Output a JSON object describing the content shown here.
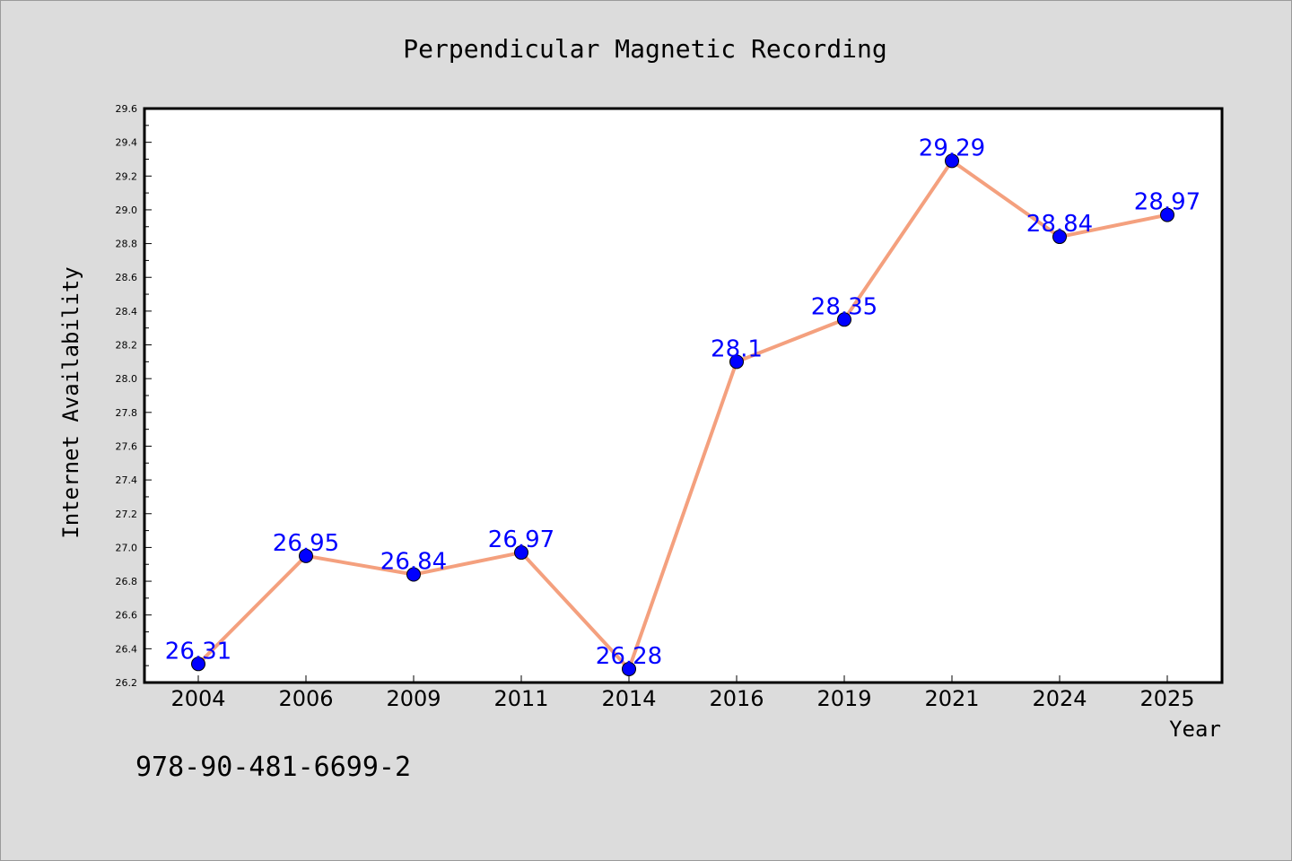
{
  "chart_data": {
    "type": "line",
    "title": "Perpendicular Magnetic Recording",
    "xlabel": "Year",
    "ylabel": "Internet Availability",
    "categories": [
      "2004",
      "2006",
      "2009",
      "2011",
      "2014",
      "2016",
      "2019",
      "2021",
      "2024",
      "2025"
    ],
    "series": [
      {
        "values": [
          26.31,
          26.95,
          26.84,
          26.97,
          26.28,
          28.1,
          28.35,
          29.29,
          28.84,
          28.97
        ],
        "data_labels": [
          "26.31",
          "26.95",
          "26.84",
          "26.97",
          "26.28",
          "28.1",
          "28.35",
          "29.29",
          "28.84",
          "28.97"
        ]
      }
    ],
    "ylim": [
      26.2,
      29.6
    ],
    "yticks": [
      "26.2",
      "26.4",
      "26.6",
      "26.8",
      "27.0",
      "27.2",
      "27.4",
      "27.6",
      "27.8",
      "28.0",
      "28.2",
      "28.4",
      "28.6",
      "28.8",
      "29.0",
      "29.2",
      "29.4",
      "29.6"
    ],
    "grid": false,
    "colors": {
      "line": "#f4a07e",
      "marker": "#0000ff",
      "data_label": "#0000ff",
      "background": "#dcdcdc",
      "plot_background": "#ffffff"
    }
  },
  "footer": {
    "isbn": "978-90-481-6699-2"
  }
}
